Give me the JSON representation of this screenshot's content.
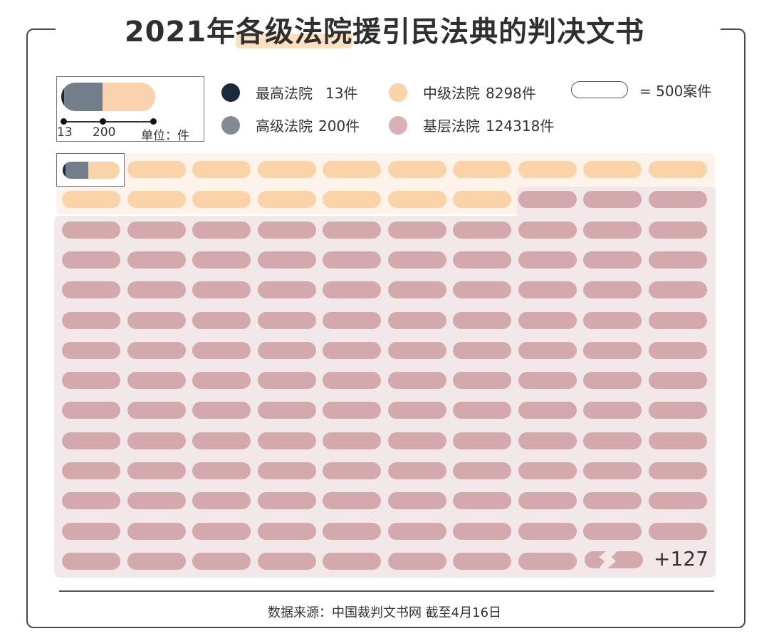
{
  "title": {
    "prefix": "2021年",
    "highlight": "各级法院",
    "suffix": "援引民法典的判决文书"
  },
  "mini_legend": {
    "tick_labels": [
      "13",
      "200"
    ],
    "unit_label": "单位：件"
  },
  "legend": [
    {
      "name": "最高法院",
      "count": "13件",
      "color": "#1b2a3d"
    },
    {
      "name": "高级法院",
      "count": "200件",
      "color": "#737e8b"
    },
    {
      "name": "中级法院",
      "count": "8298件",
      "color": "#fbd3a9"
    },
    {
      "name": "基层法院",
      "count": "124318件",
      "color": "#d3a9ad"
    }
  ],
  "unit_note": "= 500案件",
  "overflow_label": "+127",
  "source": "数据来源：中国裁判文书网  截至4月16日",
  "colors": {
    "supreme": "#1b2a3d",
    "high": "#737e8b",
    "intermediate": "#fbd3a9",
    "basic": "#d3a9ad",
    "band_intermediate": "#fdf3ea",
    "band_basic": "#f3e8e9"
  },
  "chart_data": {
    "type": "pictogram",
    "title": "2021年各级法院援引民法典的判决文书",
    "unit": "1 capsule = 500 cases",
    "categories": [
      "最高法院",
      "高级法院",
      "中级法院",
      "基层法院"
    ],
    "values": [
      13,
      200,
      8298,
      124318
    ],
    "grid": {
      "columns": 10,
      "rows_shown": 14
    },
    "capsules": {
      "intermediate_rows": [
        "10",
        "7"
      ],
      "basic_shown": 123,
      "basic_hidden": 127
    },
    "overflow_annotation": "+127",
    "legend_position": "top",
    "source": "中国裁判文书网 截至4月16日"
  }
}
